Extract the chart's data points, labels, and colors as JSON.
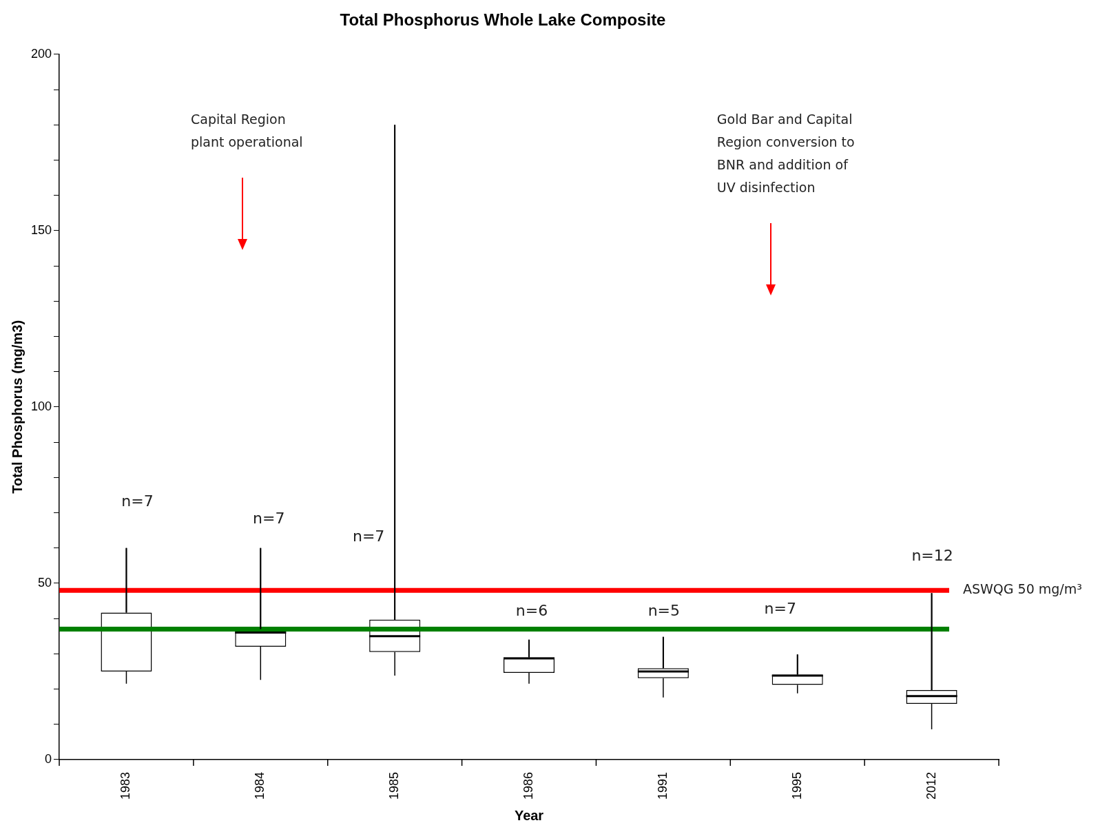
{
  "chart_data": {
    "type": "box",
    "title": "Total Phosphorus Whole Lake Composite",
    "xlabel": "Year",
    "ylabel": "Total Phosphorus (mg/m3)",
    "categories": [
      "1983",
      "1984",
      "1985",
      "1986",
      "1991",
      "1995",
      "2012"
    ],
    "boxes": [
      {
        "low": 21.5,
        "q1": 25,
        "median": 37,
        "q3": 41.7,
        "high": 60
      },
      {
        "low": 22.6,
        "q1": 32,
        "median": 36,
        "q3": 37,
        "high": 60
      },
      {
        "low": 23.8,
        "q1": 30.5,
        "median": 35,
        "q3": 39.7,
        "high": 180
      },
      {
        "low": 21.5,
        "q1": 24.6,
        "median": 28.7,
        "q3": 29,
        "high": 34
      },
      {
        "low": 17.6,
        "q1": 23.1,
        "median": 25,
        "q3": 25.9,
        "high": 34.8
      },
      {
        "low": 18.8,
        "q1": 21.2,
        "median": 23.8,
        "q3": 24.1,
        "high": 29.8
      },
      {
        "low": 8.6,
        "q1": 15.8,
        "median": 18,
        "q3": 19.7,
        "high": 47.2
      }
    ],
    "ylim": [
      0,
      200
    ],
    "yticks": [
      0,
      {
        "value": 10,
        "label": null
      },
      {
        "value": 20,
        "label": null
      },
      {
        "value": 30,
        "label": null
      },
      {
        "value": 40,
        "label": null
      },
      50,
      {
        "value": 60,
        "label": null
      },
      {
        "value": 70,
        "label": null
      },
      {
        "value": 80,
        "label": null
      },
      {
        "value": 90,
        "label": null
      },
      100,
      {
        "value": 110,
        "label": null
      },
      {
        "value": 120,
        "label": null
      },
      {
        "value": 130,
        "label": null
      },
      {
        "value": 140,
        "label": null
      },
      150,
      {
        "value": 160,
        "label": null
      },
      {
        "value": 170,
        "label": null
      },
      {
        "value": 180,
        "label": null
      },
      {
        "value": 190,
        "label": null
      },
      200
    ],
    "grid": false,
    "legend": false,
    "ref_lines": [
      {
        "axis": "y",
        "value": 48,
        "label": "ASWQG 50 mg/m³",
        "color": "#ff0000"
      },
      {
        "axis": "y",
        "value": 37,
        "color": "#008000"
      }
    ],
    "annotations": [
      "n=7",
      "n=7",
      "n=7",
      "n=6",
      "n=5",
      "n=7",
      "n=12",
      "Capital Region plant operational",
      "Gold Bar and Capital Region conversion to BNR and addition of UV disinfection"
    ]
  }
}
